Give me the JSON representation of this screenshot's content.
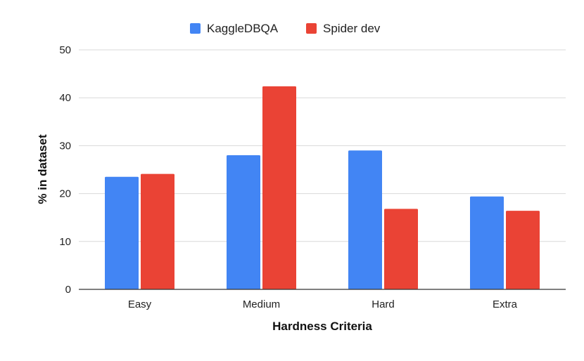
{
  "chart_data": {
    "type": "bar",
    "title": "",
    "xlabel": "Hardness Criteria",
    "ylabel": "% in dataset",
    "categories": [
      "Easy",
      "Medium",
      "Hard",
      "Extra"
    ],
    "series": [
      {
        "name": "KaggleDBQA",
        "color": "#4285F4",
        "values": [
          23.5,
          28.0,
          29.0,
          19.4
        ]
      },
      {
        "name": "Spider dev",
        "color": "#EA4335",
        "values": [
          24.1,
          42.4,
          16.8,
          16.4
        ]
      }
    ],
    "ylim": [
      0,
      50
    ],
    "yticks": [
      "0",
      "10",
      "20",
      "30",
      "40",
      "50"
    ],
    "grid": true,
    "legend_position": "top-center"
  }
}
